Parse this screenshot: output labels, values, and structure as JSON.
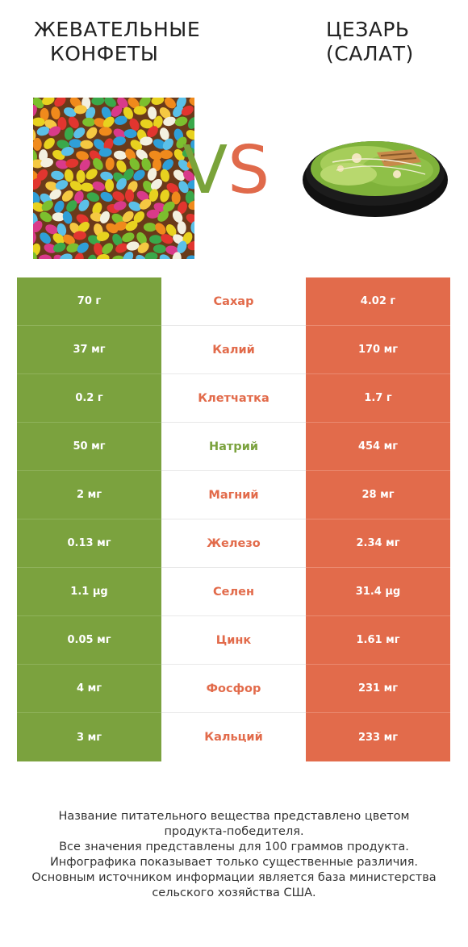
{
  "header": {
    "left_title_line1": "ЖЕВАТЕЛЬНЫЕ",
    "left_title_line2": "КОНФЕТЫ",
    "right_title_line1": "ЦЕЗАРЬ",
    "right_title_line2": "(САЛАТ)",
    "vs_v": "V",
    "vs_s": "S"
  },
  "colors": {
    "left_winner": "#7ba23e",
    "right_winner": "#e26b4b"
  },
  "rows": [
    {
      "left": "70 г",
      "nutrient": "Сахар",
      "right": "4.02 г",
      "winner": "right"
    },
    {
      "left": "37 мг",
      "nutrient": "Калий",
      "right": "170 мг",
      "winner": "right"
    },
    {
      "left": "0.2 г",
      "nutrient": "Клетчатка",
      "right": "1.7 г",
      "winner": "right"
    },
    {
      "left": "50 мг",
      "nutrient": "Натрий",
      "right": "454 мг",
      "winner": "left"
    },
    {
      "left": "2 мг",
      "nutrient": "Магний",
      "right": "28 мг",
      "winner": "right"
    },
    {
      "left": "0.13 мг",
      "nutrient": "Железо",
      "right": "2.34 мг",
      "winner": "right"
    },
    {
      "left": "1.1 µg",
      "nutrient": "Селен",
      "right": "31.4 µg",
      "winner": "right"
    },
    {
      "left": "0.05 мг",
      "nutrient": "Цинк",
      "right": "1.61 мг",
      "winner": "right"
    },
    {
      "left": "4 мг",
      "nutrient": "Фосфор",
      "right": "231 мг",
      "winner": "right"
    },
    {
      "left": "3 мг",
      "nutrient": "Кальций",
      "right": "233 мг",
      "winner": "right"
    }
  ],
  "footer": {
    "line1": "Название питательного вещества представлено цветом",
    "line2": "продукта-победителя.",
    "line3": "Все значения представлены для 100 граммов продукта.",
    "line4": "Инфографика показывает только существенные различия.",
    "line5": "Основным источником информации является база министерства",
    "line6": "сельского хозяйства США."
  }
}
